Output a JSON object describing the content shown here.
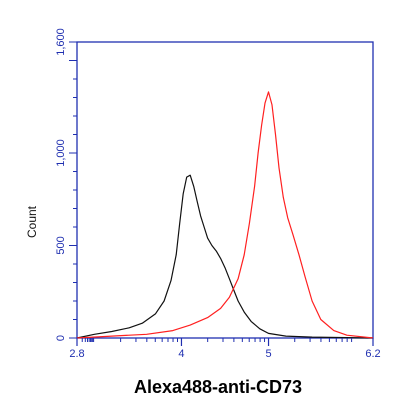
{
  "chart_data": {
    "type": "line",
    "xlabel": "Alexa488-anti-CD73",
    "ylabel": "Count",
    "xlim": [
      2.8,
      6.2
    ],
    "ylim": [
      0,
      1600
    ],
    "x_scale": "log",
    "x_ticks": [
      {
        "value": 2.8,
        "label": "2.8"
      },
      {
        "value": 4,
        "label": "4"
      },
      {
        "value": 5,
        "label": "5"
      },
      {
        "value": 6.2,
        "label": "6.2"
      }
    ],
    "y_ticks": [
      {
        "value": 0,
        "label": "0"
      },
      {
        "value": 500,
        "label": "500"
      },
      {
        "value": 1000,
        "label": "1,000"
      },
      {
        "value": 1600,
        "label": "1,600"
      }
    ],
    "series": [
      {
        "color": "#111111",
        "x": [
          2.8,
          3.0,
          3.2,
          3.4,
          3.55,
          3.7,
          3.8,
          3.88,
          3.94,
          3.98,
          4.02,
          4.06,
          4.1,
          4.14,
          4.18,
          4.22,
          4.26,
          4.3,
          4.35,
          4.4,
          4.45,
          4.5,
          4.55,
          4.6,
          4.65,
          4.72,
          4.8,
          4.9,
          5.0,
          5.2,
          5.5,
          6.2
        ],
        "y": [
          0,
          20,
          35,
          55,
          80,
          130,
          200,
          310,
          450,
          620,
          780,
          870,
          880,
          820,
          740,
          660,
          600,
          540,
          500,
          470,
          430,
          380,
          320,
          260,
          200,
          140,
          90,
          50,
          25,
          10,
          5,
          0
        ]
      },
      {
        "color": "#ff2020",
        "x": [
          2.8,
          3.2,
          3.6,
          3.9,
          4.1,
          4.3,
          4.45,
          4.55,
          4.65,
          4.72,
          4.78,
          4.84,
          4.88,
          4.92,
          4.96,
          5.0,
          5.04,
          5.08,
          5.12,
          5.17,
          5.22,
          5.28,
          5.35,
          5.42,
          5.5,
          5.6,
          5.75,
          5.9,
          6.2
        ],
        "y": [
          0,
          10,
          20,
          40,
          70,
          110,
          160,
          220,
          320,
          450,
          620,
          820,
          1000,
          1150,
          1270,
          1330,
          1260,
          1100,
          920,
          760,
          650,
          560,
          450,
          330,
          200,
          100,
          40,
          15,
          0
        ]
      }
    ]
  }
}
